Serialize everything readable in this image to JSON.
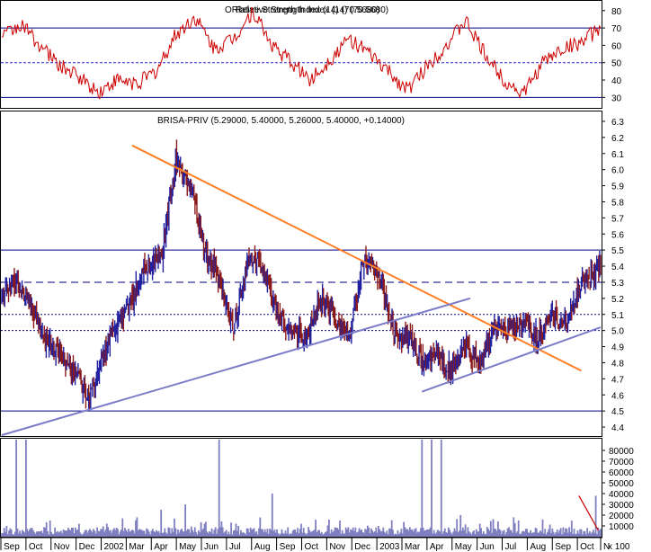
{
  "colors": {
    "background": "#ffffff",
    "frame": "#000000",
    "rsi_line": "#cc0000",
    "rsi_level": "#000080",
    "rsi_mid": "#2a2ad0",
    "price_up": "#2020a0",
    "price_down": "#8b1a1a",
    "level_line": "#000080",
    "resistance": "#ff7f27",
    "support": "#7c7cc8",
    "volume": "#7f7fc0",
    "volume_annot": "#cc0000"
  },
  "rsi_panel": {
    "title": "Relative Strength Index (14) (70.5680)",
    "overlap_title": "ORlative Strength Index (14) (70.5680)",
    "y_ticks": [
      "80",
      "70",
      "60",
      "50",
      "40",
      "30"
    ],
    "levels": [
      70,
      50,
      30
    ]
  },
  "price_panel": {
    "title": "BRISA-PRIV (5.29000, 5.40000, 5.26000, 5.40000, +0.14000)",
    "y_ticks": [
      "6.3",
      "6.2",
      "6.1",
      "6.0",
      "5.9",
      "5.8",
      "5.7",
      "5.6",
      "5.5",
      "5.4",
      "5.3",
      "5.2",
      "5.1",
      "5.0",
      "4.9",
      "4.8",
      "4.7",
      "4.6",
      "4.5",
      "4.4"
    ],
    "horizontal_levels": [
      {
        "price": 5.5,
        "style": "solid"
      },
      {
        "price": 5.3,
        "style": "dashed"
      },
      {
        "price": 5.1,
        "style": "dotted"
      },
      {
        "price": 5.0,
        "style": "dotted"
      },
      {
        "price": 4.5,
        "style": "solid"
      }
    ]
  },
  "volume_panel": {
    "y_ticks": [
      "80000",
      "70000",
      "60000",
      "50000",
      "40000",
      "30000",
      "20000",
      "10000"
    ],
    "corner_label": "x 100"
  },
  "x_axis": {
    "labels": [
      "Sep",
      "Oct",
      "Nov",
      "Dec",
      "2002",
      "Mar",
      "Apr",
      "May",
      "Jun",
      "Jul",
      "Aug",
      "Sep",
      "Oct",
      "Nov",
      "Dec",
      "2003",
      "Mar",
      "Apr",
      "May",
      "Jun",
      "Jul",
      "Aug",
      "Sep",
      "Oct",
      "N"
    ]
  },
  "chart_data": [
    {
      "type": "line",
      "title": "Relative Strength Index (14) (70.5680)",
      "ylim": [
        25,
        83
      ],
      "reference_lines": [
        70,
        50,
        30
      ],
      "series": [
        {
          "name": "Relative Strength Index (14)",
          "x": [
            0,
            4,
            8,
            12,
            16,
            20,
            24,
            28,
            32,
            36,
            40,
            44,
            48,
            52,
            56,
            60,
            64,
            68,
            72,
            76,
            80,
            84,
            88,
            92,
            96,
            100,
            104,
            108,
            112,
            116,
            120,
            124
          ],
          "values": [
            65,
            72,
            60,
            48,
            42,
            33,
            40,
            38,
            45,
            66,
            76,
            58,
            64,
            80,
            60,
            50,
            40,
            52,
            64,
            55,
            45,
            34,
            48,
            60,
            74,
            55,
            40,
            32,
            50,
            58,
            62,
            70
          ]
        }
      ]
    },
    {
      "type": "bar",
      "subtype": "ohlc",
      "title": "BRISA-PRIV (5.29000, 5.40000, 5.26000, 5.40000, +0.14000)",
      "ylim": [
        4.35,
        6.35
      ],
      "last": {
        "open": 5.29,
        "high": 5.4,
        "low": 5.26,
        "close": 5.4,
        "change": 0.14
      },
      "series": [
        {
          "name": "BRISA-PRIV",
          "x": [
            0,
            3,
            6,
            9,
            12,
            15,
            18,
            21,
            24,
            27,
            30,
            33,
            36,
            39,
            42,
            45,
            48,
            51,
            54,
            57,
            60,
            63,
            66,
            69,
            72,
            75,
            78,
            81,
            84,
            87,
            90,
            93,
            96,
            99,
            102,
            105,
            108,
            111,
            114,
            117,
            120,
            124
          ],
          "values": [
            5.2,
            5.3,
            5.15,
            4.95,
            4.85,
            4.75,
            4.55,
            4.85,
            5.05,
            5.2,
            5.4,
            5.45,
            6.05,
            5.9,
            5.5,
            5.3,
            5.0,
            5.45,
            5.4,
            5.1,
            5.0,
            4.95,
            5.2,
            5.1,
            4.95,
            5.45,
            5.35,
            5.0,
            4.95,
            4.8,
            4.85,
            4.75,
            4.9,
            4.8,
            5.0,
            5.0,
            5.05,
            4.95,
            5.1,
            5.05,
            5.3,
            5.4
          ]
        }
      ],
      "trendlines": [
        {
          "name": "resistance",
          "from": [
            27,
            6.15
          ],
          "to": [
            120,
            4.75
          ]
        },
        {
          "name": "support",
          "from": [
            0,
            4.35
          ],
          "to": [
            97,
            5.2
          ]
        },
        {
          "name": "support-2",
          "from": [
            87,
            4.62
          ],
          "to": [
            124,
            5.02
          ]
        }
      ]
    },
    {
      "type": "bar",
      "title": "",
      "ylim": [
        0,
        90000
      ],
      "annotation": "x 100",
      "series": [
        {
          "name": "Volume",
          "x": [
            1,
            3,
            5,
            10,
            16,
            22,
            28,
            33,
            38,
            42,
            45,
            49,
            56,
            62,
            70,
            78,
            87,
            89,
            91,
            95,
            99,
            106,
            112,
            118,
            123
          ],
          "values": [
            10000,
            90000,
            90000,
            15000,
            12000,
            9000,
            18000,
            25000,
            30000,
            12000,
            90000,
            10000,
            40000,
            12000,
            15000,
            10000,
            90000,
            90000,
            90000,
            20000,
            12000,
            18000,
            16000,
            15000,
            38000
          ]
        }
      ]
    }
  ]
}
